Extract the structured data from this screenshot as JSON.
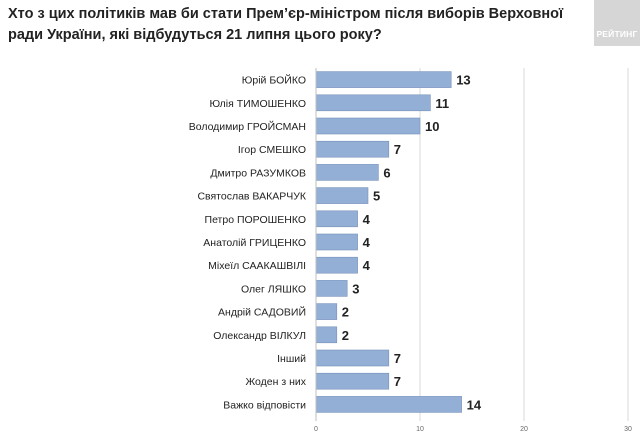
{
  "title": "Хто з цих політиків мав би стати Прем’єр-міністром після виборів Верховної ради України, які відбудуться 21 липня цього року?",
  "logo_text": "РЕЙТИНГ",
  "colors": {
    "bar": "#93afd6",
    "bar_border": "#7893bb",
    "grid": "#d9d9d9",
    "text": "#222222"
  },
  "chart_data": {
    "type": "bar",
    "orientation": "horizontal",
    "categories": [
      "Юрій БОЙКО",
      "Юлія ТИМОШЕНКО",
      "Володимир ГРОЙСМАН",
      "Ігор СМЕШКО",
      "Дмитро РАЗУМКОВ",
      "Святослав ВАКАРЧУК",
      "Петро ПОРОШЕНКО",
      "Анатолій ГРИЦЕНКО",
      "Міхеїл СААКАШВІЛІ",
      "Олег ЛЯШКО",
      "Андрій САДОВИЙ",
      "Олександр ВІЛКУЛ",
      "Інший",
      "Жоден з них",
      "Важко відповісти"
    ],
    "values": [
      13,
      11,
      10,
      7,
      6,
      5,
      4,
      4,
      4,
      3,
      2,
      2,
      7,
      7,
      14
    ],
    "data_labels": [
      "13",
      "11",
      "10",
      "7",
      "6",
      "5",
      "4",
      "4",
      "4",
      "3",
      "2",
      "2",
      "7",
      "7",
      "14"
    ],
    "xlim": [
      0,
      30
    ],
    "xticks": [
      0,
      10,
      20,
      30
    ],
    "xtick_labels": [
      "0",
      "10",
      "20",
      "30"
    ],
    "grid": true
  }
}
